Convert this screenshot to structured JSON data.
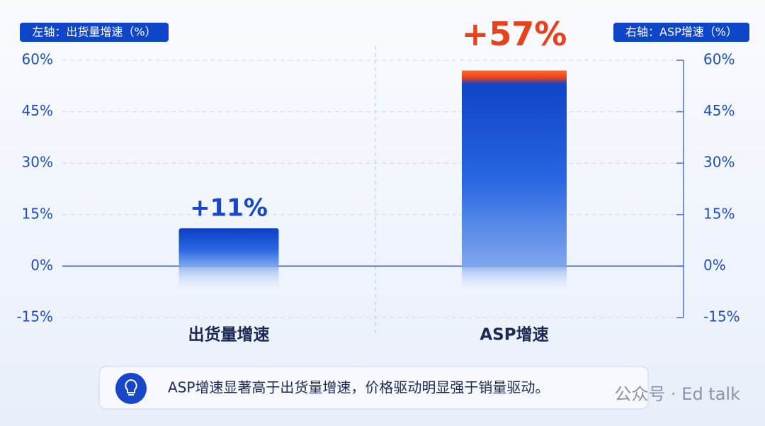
{
  "chart_data": {
    "type": "bar",
    "left_axis_title": "左轴：出货量增速（%）",
    "right_axis_title": "右轴：ASP增速（%）",
    "categories": [
      "出货量增速",
      "ASP增速"
    ],
    "series": [
      {
        "values": [
          11,
          null
        ],
        "value_labels": [
          "+11%",
          null
        ],
        "color": "#1747c9"
      },
      {
        "values": [
          null,
          57
        ],
        "value_labels": [
          null,
          "+57%"
        ],
        "color": "#1747c9",
        "axis": "y2"
      }
    ],
    "ylim": [
      -15,
      60
    ],
    "yticks": [
      {
        "value": -15,
        "label": "-15%"
      },
      {
        "value": 0,
        "label": "0%"
      },
      {
        "value": 15,
        "label": "15%"
      },
      {
        "value": 30,
        "label": "30%"
      },
      {
        "value": 45,
        "label": "45%"
      },
      {
        "value": 60,
        "label": "60%"
      }
    ],
    "y2lim": [
      -15,
      60
    ],
    "y2ticks": [
      {
        "value": -15,
        "label": "-15%"
      },
      {
        "value": 0,
        "label": "0%"
      },
      {
        "value": 15,
        "label": "15%"
      },
      {
        "value": 30,
        "label": "30%"
      },
      {
        "value": 45,
        "label": "45%"
      },
      {
        "value": 60,
        "label": "60%"
      }
    ],
    "grid": true,
    "annotation": "ASP增速显著高于出货量增速，价格驱动明显强于销量驱动。",
    "watermark": "公众号 · Ed talk"
  }
}
